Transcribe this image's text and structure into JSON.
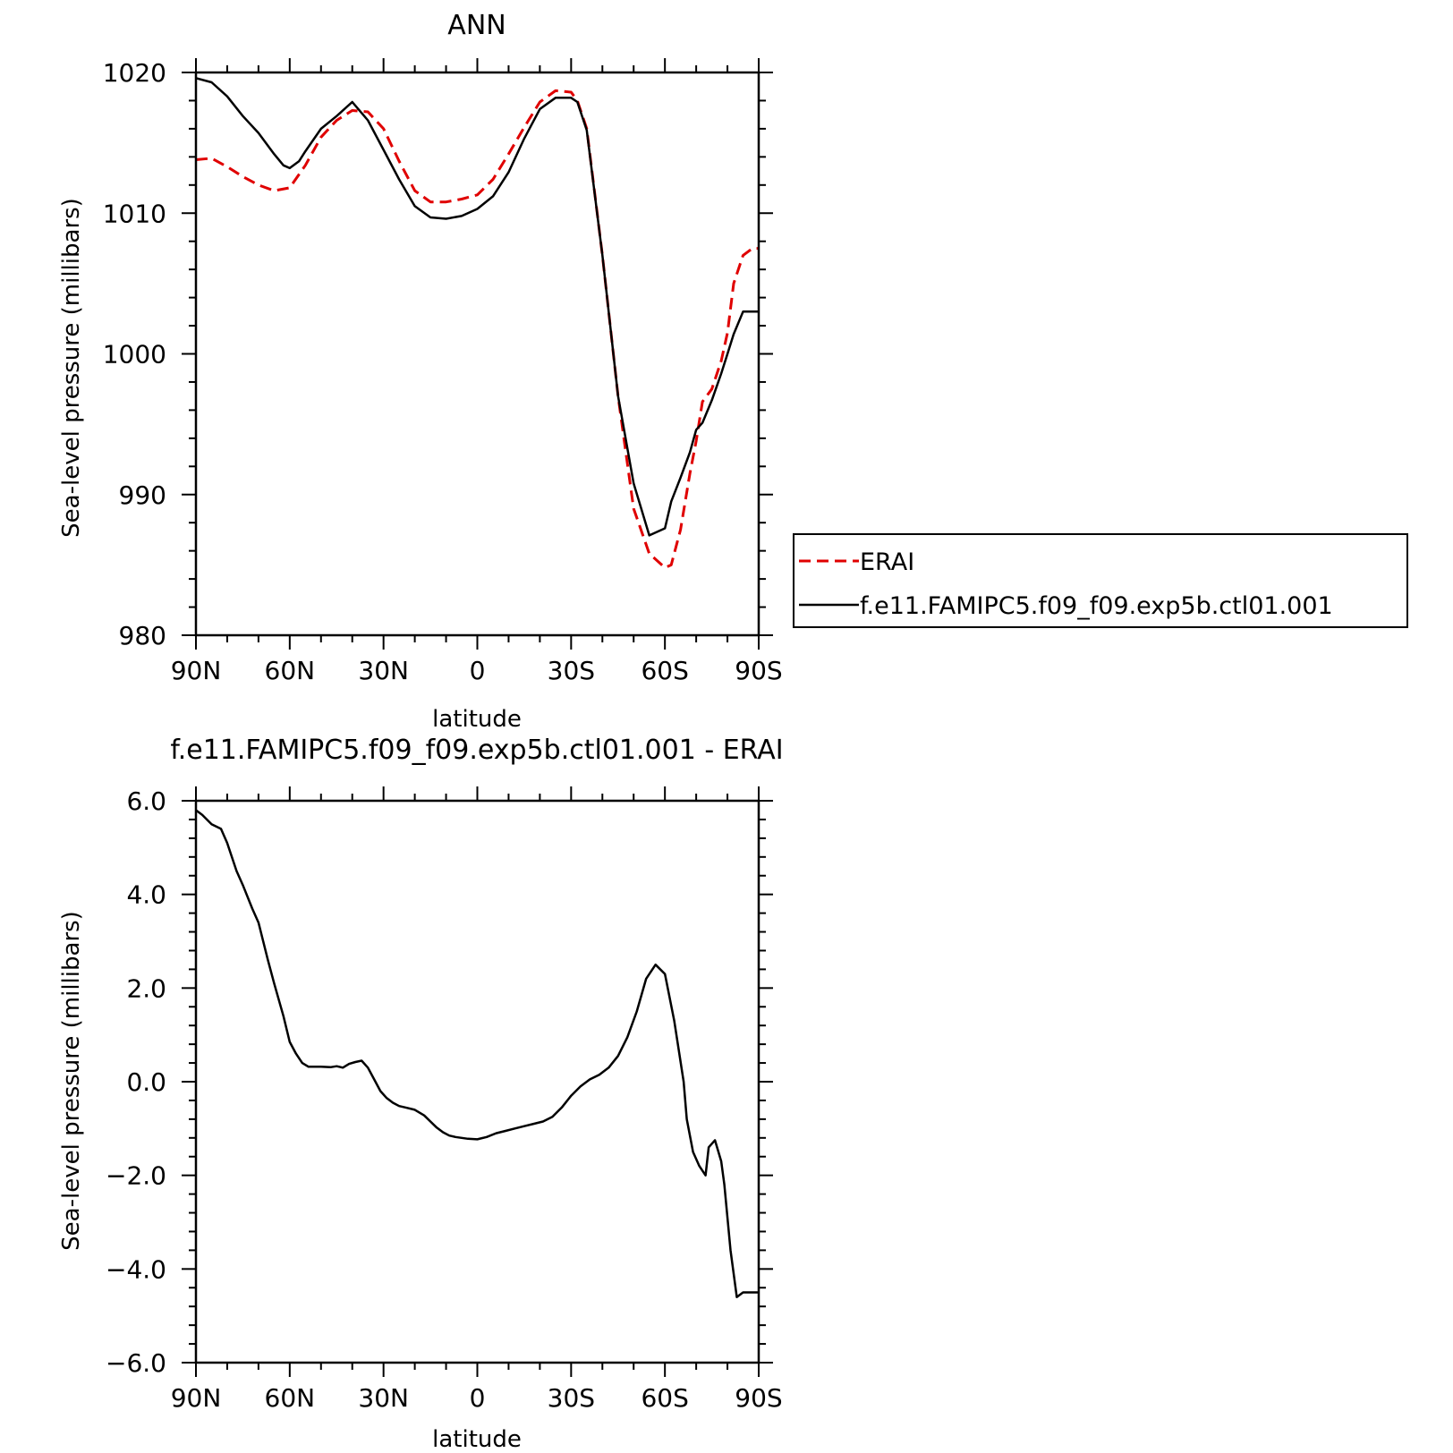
{
  "chart_data": [
    {
      "type": "line",
      "title": "ANN",
      "xlabel": "latitude",
      "ylabel": "Sea-level pressure (millibars)",
      "x_axis": "latitude from 90N (left) to 90S (right); x values are degrees north, south negative",
      "xlim": [
        90,
        -90
      ],
      "ylim": [
        980,
        1020
      ],
      "xticks": [
        90,
        60,
        30,
        0,
        -30,
        -60,
        -90
      ],
      "xtick_labels": [
        "90N",
        "60N",
        "30N",
        "0",
        "30S",
        "60S",
        "90S"
      ],
      "yticks": [
        980,
        990,
        1000,
        1010,
        1020
      ],
      "ytick_labels": [
        "980",
        "990",
        "1000",
        "1010",
        "1020"
      ],
      "grid": false,
      "legend": "right",
      "series": [
        {
          "name": "ERAI",
          "color": "#e00000",
          "dash": "dashed",
          "x": [
            90,
            85,
            80,
            75,
            70,
            65,
            60,
            55,
            50,
            45,
            40,
            35,
            30,
            25,
            20,
            15,
            10,
            5,
            0,
            -5,
            -10,
            -15,
            -20,
            -25,
            -30,
            -32,
            -35,
            -40,
            -45,
            -50,
            -55,
            -60,
            -62,
            -65,
            -68,
            -70,
            -72,
            -75,
            -78,
            -80,
            -82,
            -85,
            -88,
            -90
          ],
          "y": [
            1013.8,
            1013.9,
            1013.3,
            1012.6,
            1012.0,
            1011.6,
            1011.8,
            1013.4,
            1015.4,
            1016.6,
            1017.3,
            1017.2,
            1016.0,
            1013.7,
            1011.6,
            1010.8,
            1010.8,
            1011.0,
            1011.3,
            1012.4,
            1014.2,
            1016.1,
            1017.9,
            1018.7,
            1018.6,
            1018.0,
            1016.0,
            1007.0,
            997.0,
            989.0,
            985.8,
            984.8,
            985.0,
            987.5,
            991.5,
            993.8,
            996.6,
            997.5,
            999.5,
            1001.5,
            1005.0,
            1007.0,
            1007.5,
            1007.5
          ]
        },
        {
          "name": "f.e11.FAMIPC5.f09_f09.exp5b.ctl01.001",
          "color": "#000000",
          "dash": "solid",
          "x": [
            90,
            85,
            80,
            75,
            70,
            65,
            62,
            60,
            57,
            55,
            50,
            45,
            40,
            35,
            30,
            25,
            20,
            15,
            10,
            5,
            0,
            -5,
            -10,
            -15,
            -20,
            -25,
            -30,
            -32,
            -35,
            -40,
            -45,
            -50,
            -55,
            -60,
            -62,
            -65,
            -68,
            -70,
            -72,
            -75,
            -78,
            -80,
            -82,
            -85,
            -88,
            -90
          ],
          "y": [
            1019.6,
            1019.3,
            1018.3,
            1016.9,
            1015.7,
            1014.2,
            1013.4,
            1013.2,
            1013.7,
            1014.4,
            1016.0,
            1016.9,
            1017.9,
            1016.6,
            1014.5,
            1012.4,
            1010.5,
            1009.7,
            1009.6,
            1009.8,
            1010.3,
            1011.2,
            1012.9,
            1015.3,
            1017.4,
            1018.2,
            1018.2,
            1017.9,
            1015.9,
            1007.0,
            997.0,
            990.8,
            987.1,
            987.6,
            989.5,
            991.2,
            993.0,
            994.6,
            995.1,
            996.7,
            998.6,
            1000.0,
            1001.4,
            1003.0,
            1003.0,
            1003.0
          ]
        }
      ]
    },
    {
      "type": "line",
      "title": "f.e11.FAMIPC5.f09_f09.exp5b.ctl01.001  -  ERAI",
      "xlabel": "latitude",
      "ylabel": "Sea-level pressure (millibars)",
      "x_axis": "latitude from 90N (left) to 90S (right); x values are degrees north, south negative",
      "xlim": [
        90,
        -90
      ],
      "ylim": [
        -6,
        6
      ],
      "xticks": [
        90,
        60,
        30,
        0,
        -30,
        -60,
        -90
      ],
      "xtick_labels": [
        "90N",
        "60N",
        "30N",
        "0",
        "30S",
        "60S",
        "90S"
      ],
      "yticks": [
        -6,
        -4,
        -2,
        0,
        2,
        4,
        6
      ],
      "ytick_labels": [
        "−6.0",
        "−4.0",
        "−2.0",
        "0.0",
        "2.0",
        "4.0",
        "6.0"
      ],
      "grid": false,
      "series": [
        {
          "color": "#000000",
          "dash": "solid",
          "x": [
            90,
            88,
            85,
            82,
            80,
            77,
            75,
            72,
            70,
            67,
            65,
            62,
            60,
            58,
            56,
            54,
            52,
            50,
            47,
            45,
            43,
            41,
            39,
            37,
            35,
            33,
            31,
            29,
            27,
            25,
            23,
            20,
            17,
            15,
            13,
            11,
            9,
            7,
            5,
            3,
            0,
            -3,
            -6,
            -9,
            -12,
            -15,
            -18,
            -21,
            -24,
            -27,
            -30,
            -33,
            -36,
            -39,
            -42,
            -45,
            -48,
            -51,
            -54,
            -57,
            -60,
            -63,
            -66,
            -67,
            -69,
            -71,
            -73,
            -74,
            -76,
            -78,
            -79,
            -81,
            -83,
            -85,
            -87,
            -88,
            -89,
            -90
          ],
          "y": [
            5.8,
            5.7,
            5.5,
            5.4,
            5.1,
            4.5,
            4.2,
            3.7,
            3.4,
            2.6,
            2.1,
            1.4,
            0.85,
            0.6,
            0.4,
            0.32,
            0.32,
            0.32,
            0.31,
            0.33,
            0.3,
            0.38,
            0.42,
            0.45,
            0.3,
            0.05,
            -0.2,
            -0.35,
            -0.45,
            -0.52,
            -0.55,
            -0.6,
            -0.72,
            -0.85,
            -0.98,
            -1.08,
            -1.15,
            -1.18,
            -1.2,
            -1.22,
            -1.23,
            -1.18,
            -1.1,
            -1.05,
            -1.0,
            -0.95,
            -0.9,
            -0.85,
            -0.75,
            -0.55,
            -0.3,
            -0.1,
            0.05,
            0.15,
            0.3,
            0.55,
            0.95,
            1.5,
            2.2,
            2.5,
            2.3,
            1.3,
            0.0,
            -0.8,
            -1.5,
            -1.8,
            -2.0,
            -1.4,
            -1.25,
            -1.7,
            -2.2,
            -3.6,
            -4.6,
            -4.5,
            -4.5,
            -4.5,
            -4.5,
            -4.5
          ]
        }
      ]
    }
  ],
  "legend_entries": [
    {
      "label": "ERAI",
      "color": "#e00000",
      "dash": "dashed"
    },
    {
      "label": "f.e11.FAMIPC5.f09_f09.exp5b.ctl01.001",
      "color": "#000000",
      "dash": "solid"
    }
  ]
}
